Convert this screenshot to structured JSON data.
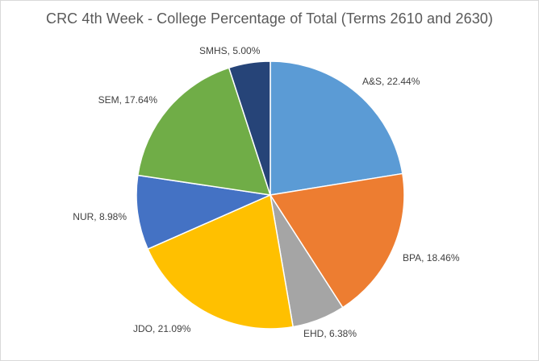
{
  "chart_data": {
    "type": "pie",
    "title": "CRC 4th Week - College Percentage of Total (Terms 2610 and 2630)",
    "start_angle_deg": 0,
    "direction": "clockwise",
    "legend": "none",
    "slices": [
      {
        "label": "A&S",
        "value": 22.44,
        "display": "A&S, 22.44%",
        "color": "#5B9BD5"
      },
      {
        "label": "BPA",
        "value": 18.46,
        "display": "BPA, 18.46%",
        "color": "#ED7D31"
      },
      {
        "label": "EHD",
        "value": 6.38,
        "display": "EHD, 6.38%",
        "color": "#A5A5A5"
      },
      {
        "label": "JDO",
        "value": 21.09,
        "display": "JDO, 21.09%",
        "color": "#FFC000"
      },
      {
        "label": "NUR",
        "value": 8.98,
        "display": "NUR, 8.98%",
        "color": "#4472C4"
      },
      {
        "label": "SEM",
        "value": 17.64,
        "display": "SEM, 17.64%",
        "color": "#70AD47"
      },
      {
        "label": "SMHS",
        "value": 5.0,
        "display": "SMHS, 5.00%",
        "color": "#264478"
      }
    ]
  }
}
